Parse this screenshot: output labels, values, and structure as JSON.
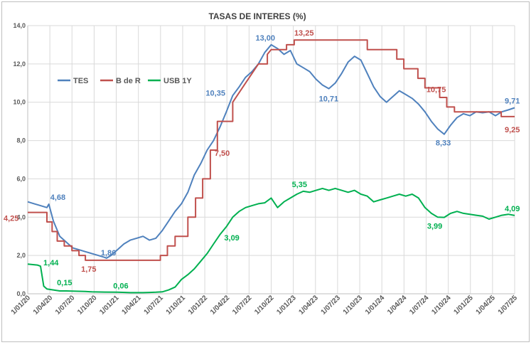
{
  "chart_data": {
    "type": "line",
    "title": "TASAS DE INTERES (%)",
    "xlabel": "",
    "ylabel": "",
    "ylim": [
      0,
      14
    ],
    "y_ticks": [
      "0,0",
      "2,0",
      "4,0",
      "6,0",
      "8,0",
      "10,0",
      "12,0",
      "14,0"
    ],
    "x_ticks": [
      "1/01/20",
      "1/04/20",
      "1/07/20",
      "1/10/20",
      "1/01/21",
      "1/04/21",
      "1/07/21",
      "1/10/21",
      "1/01/22",
      "1/04/22",
      "1/07/22",
      "1/10/22",
      "1/01/23",
      "1/04/23",
      "1/07/23",
      "1/10/23",
      "1/01/24",
      "1/04/24",
      "1/07/24",
      "1/10/24",
      "1/01/25",
      "1/04/25",
      "1/07/25"
    ],
    "grid": true,
    "legend_position": "top-left",
    "series": [
      {
        "name": "TES",
        "color": "#4f81bd",
        "points": [
          [
            0,
            4.8
          ],
          [
            1,
            4.7
          ],
          [
            2,
            4.6
          ],
          [
            3,
            4.5
          ],
          [
            3.3,
            4.68
          ],
          [
            4,
            3.8
          ],
          [
            5,
            3.0
          ],
          [
            6,
            2.7
          ],
          [
            7,
            2.4
          ],
          [
            8,
            2.3
          ],
          [
            9,
            2.2
          ],
          [
            10,
            2.1
          ],
          [
            11,
            2.0
          ],
          [
            12,
            1.9
          ],
          [
            12.3,
            1.86
          ],
          [
            13,
            2.0
          ],
          [
            14,
            2.3
          ],
          [
            15,
            2.6
          ],
          [
            16,
            2.8
          ],
          [
            17,
            2.9
          ],
          [
            18,
            3.0
          ],
          [
            19,
            2.8
          ],
          [
            20,
            2.9
          ],
          [
            21,
            3.3
          ],
          [
            22,
            3.8
          ],
          [
            23,
            4.3
          ],
          [
            24,
            4.7
          ],
          [
            25,
            5.3
          ],
          [
            26,
            6.2
          ],
          [
            27,
            6.8
          ],
          [
            28,
            7.5
          ],
          [
            29,
            8.0
          ],
          [
            30,
            8.7
          ],
          [
            31,
            9.5
          ],
          [
            32,
            10.35
          ],
          [
            33,
            10.8
          ],
          [
            34,
            11.3
          ],
          [
            35,
            11.6
          ],
          [
            36,
            12.0
          ],
          [
            37,
            12.6
          ],
          [
            38,
            13.0
          ],
          [
            39,
            12.8
          ],
          [
            40,
            12.5
          ],
          [
            41,
            12.7
          ],
          [
            42,
            12.0
          ],
          [
            43,
            11.8
          ],
          [
            44,
            11.6
          ],
          [
            45,
            11.2
          ],
          [
            46,
            10.9
          ],
          [
            47,
            10.71
          ],
          [
            48,
            11.0
          ],
          [
            49,
            11.5
          ],
          [
            50,
            12.1
          ],
          [
            51,
            12.4
          ],
          [
            52,
            12.2
          ],
          [
            53,
            11.5
          ],
          [
            54,
            10.8
          ],
          [
            55,
            10.3
          ],
          [
            56,
            10.0
          ],
          [
            57,
            10.3
          ],
          [
            58,
            10.6
          ],
          [
            59,
            10.4
          ],
          [
            60,
            10.2
          ],
          [
            61,
            9.9
          ],
          [
            62,
            9.5
          ],
          [
            63,
            9.0
          ],
          [
            64,
            8.6
          ],
          [
            65,
            8.33
          ],
          [
            66,
            8.8
          ],
          [
            67,
            9.2
          ],
          [
            68,
            9.4
          ],
          [
            69,
            9.3
          ],
          [
            70,
            9.5
          ],
          [
            71,
            9.45
          ],
          [
            72,
            9.5
          ],
          [
            73,
            9.3
          ],
          [
            74,
            9.5
          ],
          [
            75,
            9.6
          ],
          [
            76,
            9.71
          ]
        ]
      },
      {
        "name": "B de R",
        "color": "#c0504d",
        "points": [
          [
            0,
            4.25
          ],
          [
            3,
            4.25
          ],
          [
            3,
            3.75
          ],
          [
            3.8,
            3.75
          ],
          [
            3.8,
            3.25
          ],
          [
            4.6,
            3.25
          ],
          [
            4.6,
            2.75
          ],
          [
            5.7,
            2.75
          ],
          [
            5.7,
            2.5
          ],
          [
            6.9,
            2.5
          ],
          [
            6.9,
            2.25
          ],
          [
            8,
            2.25
          ],
          [
            8,
            2.0
          ],
          [
            9,
            2.0
          ],
          [
            9,
            1.75
          ],
          [
            20.7,
            1.75
          ],
          [
            20.7,
            2.0
          ],
          [
            21.8,
            2.0
          ],
          [
            21.8,
            2.5
          ],
          [
            23,
            2.5
          ],
          [
            23,
            3.0
          ],
          [
            25,
            3.0
          ],
          [
            25,
            4.0
          ],
          [
            26.2,
            4.0
          ],
          [
            26.2,
            5.0
          ],
          [
            27.3,
            5.0
          ],
          [
            27.3,
            6.0
          ],
          [
            28.5,
            6.0
          ],
          [
            28.5,
            7.5
          ],
          [
            29.6,
            7.5
          ],
          [
            29.6,
            9.0
          ],
          [
            32,
            9.0
          ],
          [
            32,
            10.0
          ],
          [
            34,
            11.0
          ],
          [
            36,
            12.0
          ],
          [
            37.4,
            12.0
          ],
          [
            37.4,
            12.5
          ],
          [
            38,
            12.75
          ],
          [
            40.4,
            12.75
          ],
          [
            40.4,
            13.0
          ],
          [
            41.6,
            13.0
          ],
          [
            41.6,
            13.25
          ],
          [
            53,
            13.25
          ],
          [
            53,
            12.75
          ],
          [
            57.6,
            12.75
          ],
          [
            57.6,
            12.25
          ],
          [
            58.7,
            12.25
          ],
          [
            58.7,
            11.75
          ],
          [
            60.9,
            11.75
          ],
          [
            60.9,
            11.25
          ],
          [
            62,
            11.25
          ],
          [
            62,
            10.75
          ],
          [
            64.3,
            10.75
          ],
          [
            64.3,
            10.25
          ],
          [
            65.4,
            10.25
          ],
          [
            65.4,
            9.75
          ],
          [
            66.6,
            9.75
          ],
          [
            66.6,
            9.5
          ],
          [
            73.9,
            9.5
          ],
          [
            73.9,
            9.25
          ],
          [
            76,
            9.25
          ]
        ]
      },
      {
        "name": "USB 1Y",
        "color": "#00b050",
        "points": [
          [
            0,
            1.55
          ],
          [
            1.5,
            1.5
          ],
          [
            2,
            1.44
          ],
          [
            2.5,
            0.4
          ],
          [
            3,
            0.25
          ],
          [
            4,
            0.2
          ],
          [
            5,
            0.15
          ],
          [
            6,
            0.15
          ],
          [
            7,
            0.14
          ],
          [
            8,
            0.13
          ],
          [
            9,
            0.12
          ],
          [
            10,
            0.1
          ],
          [
            12,
            0.09
          ],
          [
            14,
            0.08
          ],
          [
            16,
            0.06
          ],
          [
            17,
            0.06
          ],
          [
            18,
            0.06
          ],
          [
            19,
            0.07
          ],
          [
            20,
            0.08
          ],
          [
            21,
            0.1
          ],
          [
            22,
            0.2
          ],
          [
            23,
            0.35
          ],
          [
            24,
            0.75
          ],
          [
            25,
            1.0
          ],
          [
            26,
            1.3
          ],
          [
            27,
            1.7
          ],
          [
            28,
            2.1
          ],
          [
            29,
            2.6
          ],
          [
            30,
            3.09
          ],
          [
            31,
            3.5
          ],
          [
            32,
            4.0
          ],
          [
            33,
            4.3
          ],
          [
            34,
            4.5
          ],
          [
            35,
            4.6
          ],
          [
            36,
            4.7
          ],
          [
            37,
            4.75
          ],
          [
            38,
            5.0
          ],
          [
            39,
            4.5
          ],
          [
            40,
            4.8
          ],
          [
            41,
            5.0
          ],
          [
            42,
            5.2
          ],
          [
            43,
            5.35
          ],
          [
            44,
            5.3
          ],
          [
            45,
            5.4
          ],
          [
            46,
            5.5
          ],
          [
            47,
            5.4
          ],
          [
            48,
            5.5
          ],
          [
            49,
            5.4
          ],
          [
            50,
            5.3
          ],
          [
            51,
            5.4
          ],
          [
            52,
            5.2
          ],
          [
            53,
            5.1
          ],
          [
            54,
            4.8
          ],
          [
            55,
            4.9
          ],
          [
            56,
            5.0
          ],
          [
            57,
            5.1
          ],
          [
            58,
            5.2
          ],
          [
            59,
            5.1
          ],
          [
            60,
            5.2
          ],
          [
            61,
            5.0
          ],
          [
            62,
            4.5
          ],
          [
            63,
            4.2
          ],
          [
            64,
            4.0
          ],
          [
            65,
            3.99
          ],
          [
            66,
            4.2
          ],
          [
            67,
            4.3
          ],
          [
            68,
            4.2
          ],
          [
            69,
            4.15
          ],
          [
            70,
            4.1
          ],
          [
            71,
            4.05
          ],
          [
            72,
            3.9
          ],
          [
            73,
            4.0
          ],
          [
            74,
            4.1
          ],
          [
            75,
            4.15
          ],
          [
            76,
            4.09
          ]
        ]
      }
    ],
    "annotations": [
      {
        "text": "13,00",
        "series": "TES",
        "x": 38,
        "y": 13.0
      },
      {
        "text": "10,35",
        "series": "TES",
        "x": 32,
        "y": 10.35
      },
      {
        "text": "4,68",
        "series": "TES",
        "x": 3.3,
        "y": 4.68
      },
      {
        "text": "1,86",
        "series": "TES",
        "x": 12.3,
        "y": 1.86
      },
      {
        "text": "10,71",
        "series": "TES",
        "x": 47,
        "y": 10.71
      },
      {
        "text": "8,33",
        "series": "TES",
        "x": 65,
        "y": 8.33
      },
      {
        "text": "9,71",
        "series": "TES",
        "x": 76,
        "y": 9.71
      },
      {
        "text": "13,25",
        "series": "B de R",
        "x": 41.6,
        "y": 13.25
      },
      {
        "text": "10,75",
        "series": "B de R",
        "x": 62,
        "y": 10.75
      },
      {
        "text": "9,25",
        "series": "B de R",
        "x": 76,
        "y": 9.25
      },
      {
        "text": "7,50",
        "series": "B de R",
        "x": 28.5,
        "y": 7.5
      },
      {
        "text": "4,25",
        "series": "B de R",
        "x": 0,
        "y": 4.25
      },
      {
        "text": "1,75",
        "series": "B de R",
        "x": 9,
        "y": 1.75
      },
      {
        "text": "5,35",
        "series": "USB 1Y",
        "x": 43,
        "y": 5.35
      },
      {
        "text": "3,09",
        "series": "USB 1Y",
        "x": 30,
        "y": 3.09
      },
      {
        "text": "4,09",
        "series": "USB 1Y",
        "x": 76,
        "y": 4.09
      },
      {
        "text": "3,99",
        "series": "USB 1Y",
        "x": 65,
        "y": 3.99
      },
      {
        "text": "1,44",
        "series": "USB 1Y",
        "x": 2,
        "y": 1.44
      },
      {
        "text": "0,15",
        "series": "USB 1Y",
        "x": 5,
        "y": 0.15
      },
      {
        "text": "0,06",
        "series": "USB 1Y",
        "x": 16,
        "y": 0.06
      }
    ]
  }
}
